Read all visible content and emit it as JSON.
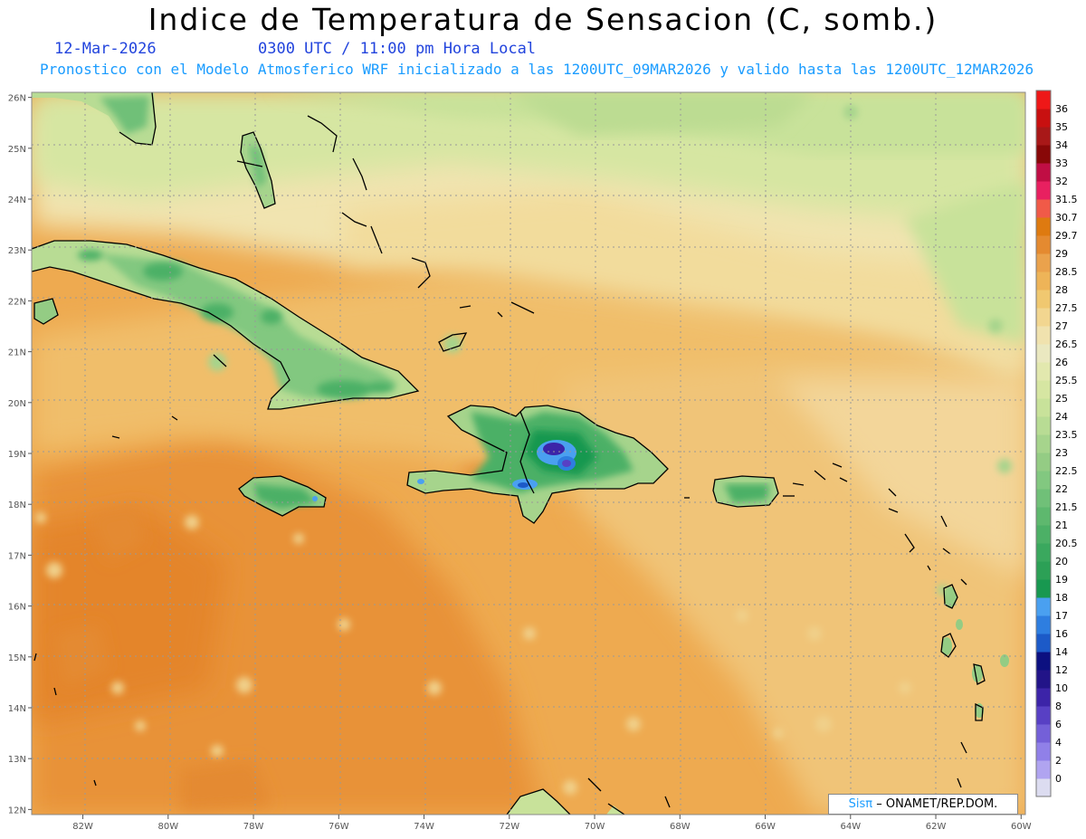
{
  "title": "Indice de Temperatura de Sensacion (C, somb.)",
  "date": "12-Mar-2026",
  "time": "0300 UTC / 11:00 pm Hora Local",
  "forecast_line": "Pronostico con el Modelo Atmosferico WRF inicializado a las 1200UTC_09MAR2026 y valido hasta las  1200UTC_12MAR2026",
  "credit": {
    "logo": "Sisπ",
    "text": "– ONAMET/REP.DOM."
  },
  "map": {
    "lon_range": [
      -83.2,
      -59.9
    ],
    "lat_range": [
      11.9,
      26.1
    ],
    "lat_labels": [
      "12N",
      "13N",
      "14N",
      "15N",
      "16N",
      "17N",
      "18N",
      "19N",
      "20N",
      "21N",
      "22N",
      "23N",
      "24N",
      "25N",
      "26N"
    ],
    "lon_labels": [
      "82W",
      "80W",
      "78W",
      "76W",
      "74W",
      "72W",
      "70W",
      "68W",
      "66W",
      "64W",
      "62W",
      "60W"
    ]
  },
  "colorbar": {
    "levels": [
      "0",
      "2",
      "4",
      "6",
      "8",
      "10",
      "12",
      "14",
      "16",
      "17",
      "18",
      "19",
      "20",
      "20.5",
      "21",
      "21.5",
      "22",
      "22.5",
      "23",
      "23.5",
      "24",
      "25",
      "25.5",
      "26",
      "26.5",
      "27",
      "27.5",
      "28",
      "28.5",
      "29",
      "29.7",
      "30.7",
      "31.5",
      "32",
      "33",
      "34",
      "35",
      "36"
    ],
    "colors": [
      "#dcdcf0",
      "#b0a4f0",
      "#9080e8",
      "#7460d8",
      "#5840c4",
      "#3c24a8",
      "#221488",
      "#0c1080",
      "#1c5ac8",
      "#2e7ee0",
      "#4aa0f0",
      "#189850",
      "#2ca056",
      "#3aa85e",
      "#4cb066",
      "#5eb86e",
      "#70c078",
      "#82c880",
      "#94cc84",
      "#a6d48c",
      "#b8dc94",
      "#c8e29a",
      "#d6e6a2",
      "#e2e8ae",
      "#eae8c0",
      "#f0e2ae",
      "#f2d690",
      "#f0c870",
      "#eeb458",
      "#eaa24c",
      "#e48a30",
      "#de7a10",
      "#f05a48",
      "#e82060",
      "#c00e44",
      "#880808",
      "#a81818",
      "#c81010",
      "#ee1818"
    ]
  }
}
